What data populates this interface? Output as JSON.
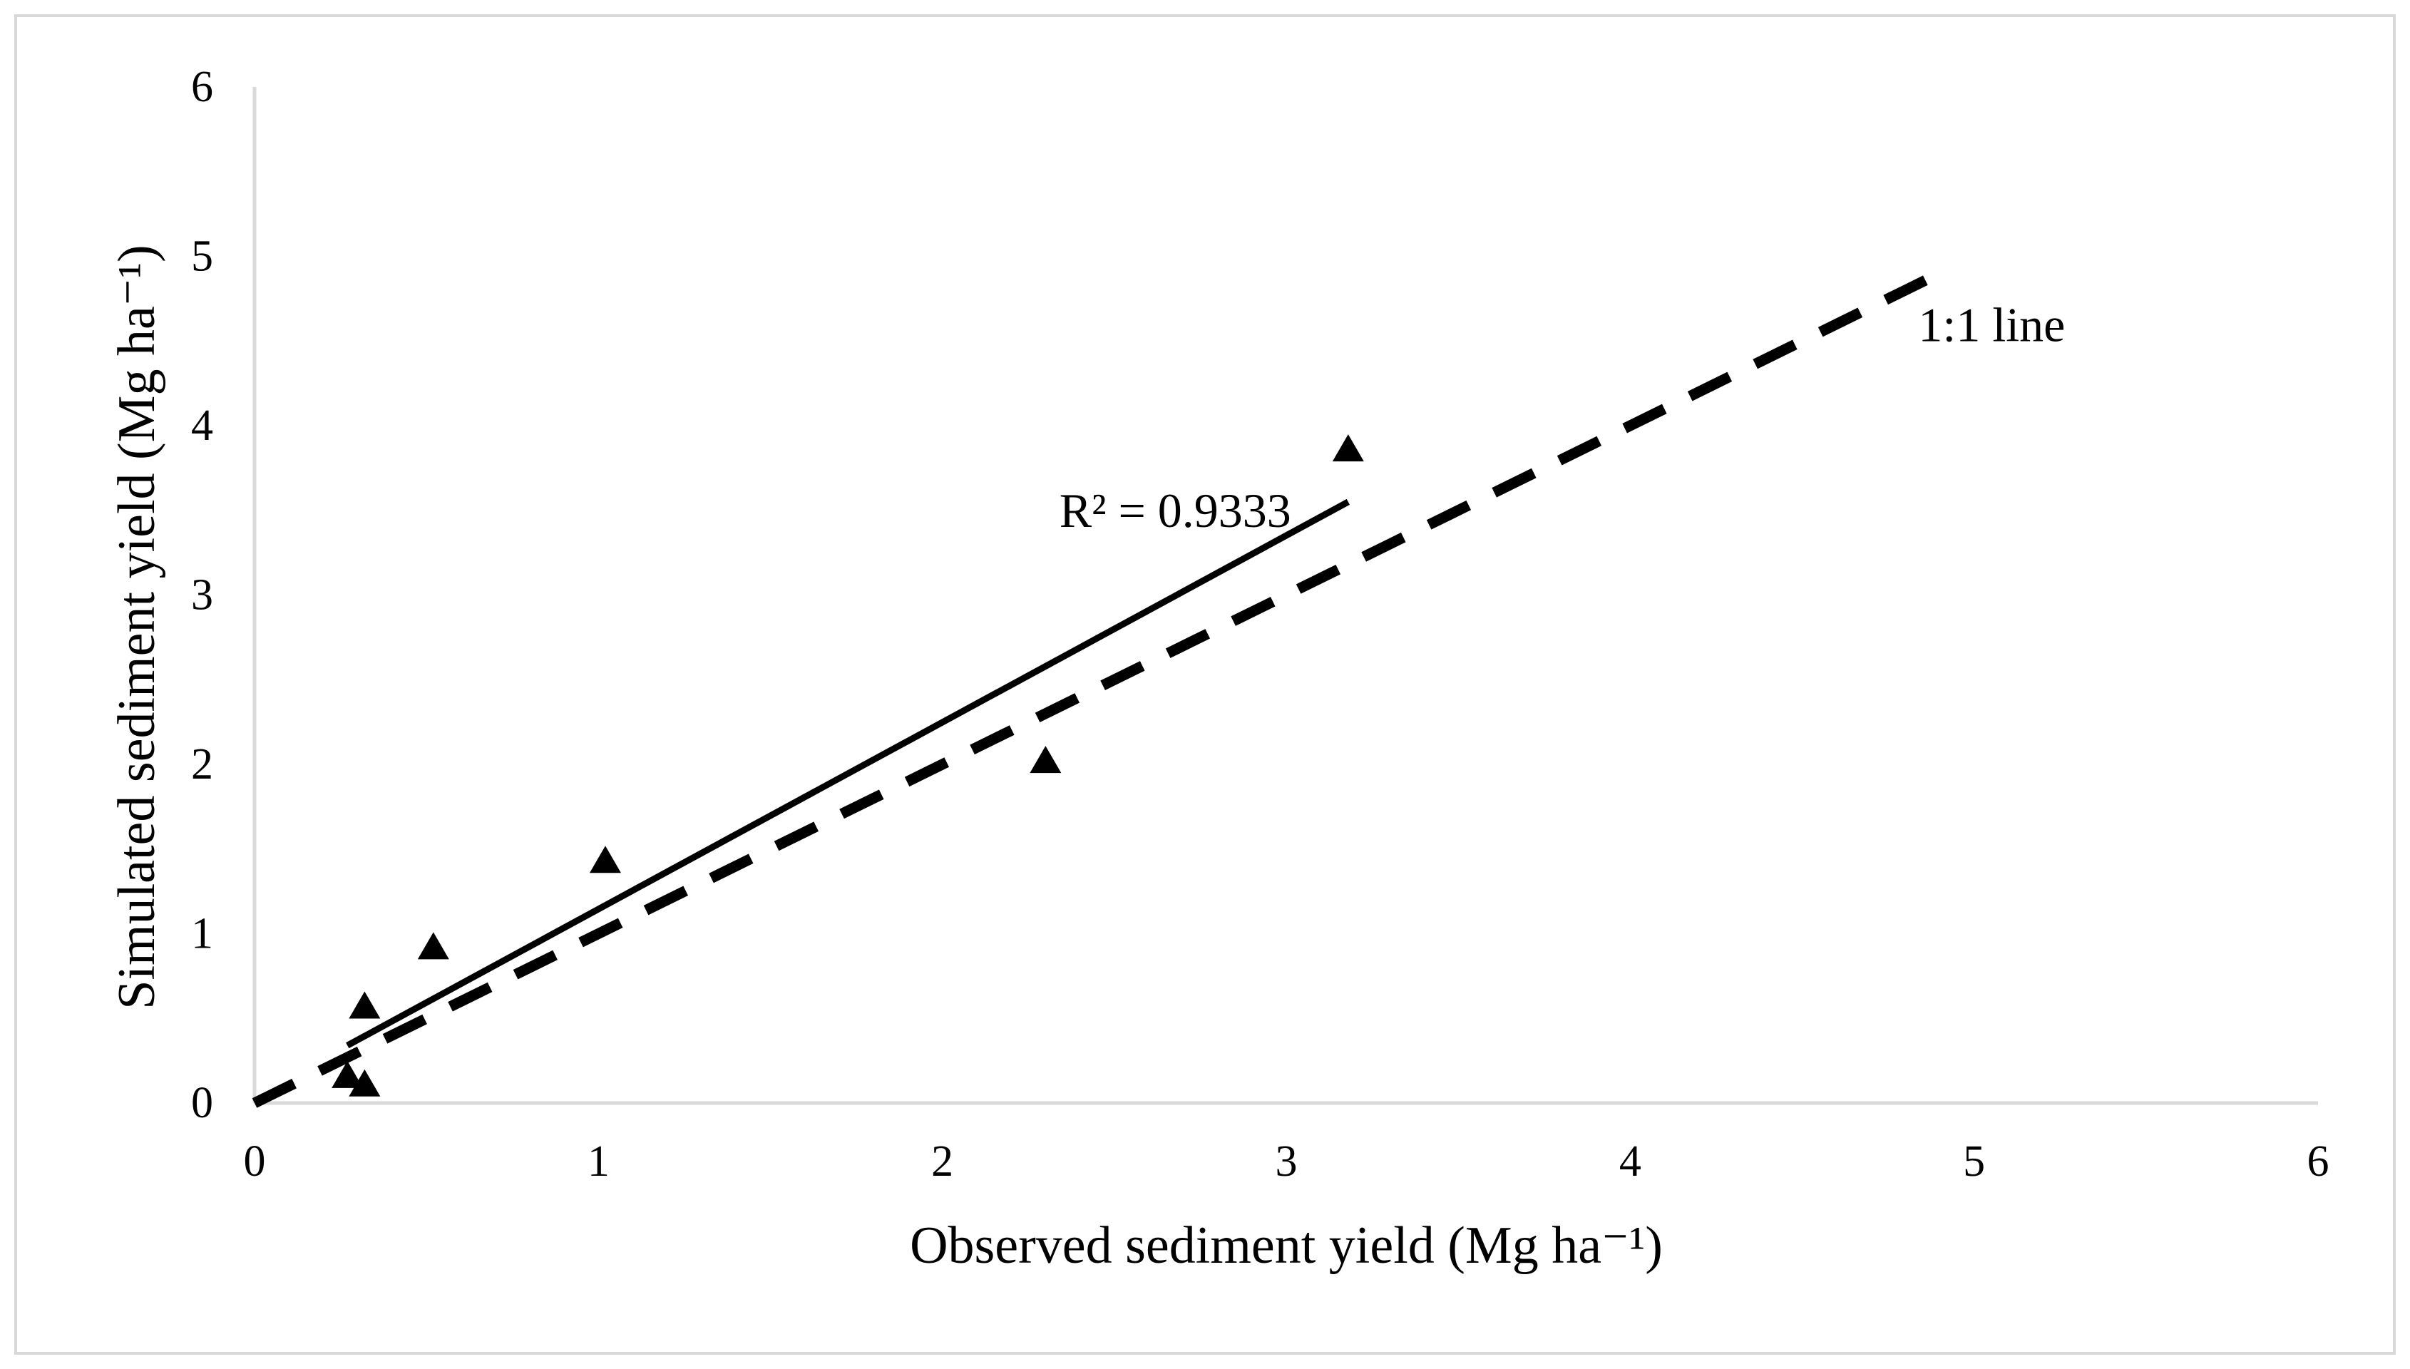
{
  "chart_data": {
    "type": "scatter",
    "title": "",
    "xlabel": "Observed sediment yield (Mg ha⁻¹)",
    "ylabel": "Simulated sediment yield (Mg ha⁻¹)",
    "xlim": [
      0,
      6
    ],
    "ylim": [
      0,
      6
    ],
    "x_ticks": [
      "0",
      "1",
      "2",
      "3",
      "4",
      "5",
      "6"
    ],
    "y_ticks": [
      "0",
      "1",
      "2",
      "3",
      "4",
      "5",
      "6"
    ],
    "grid": false,
    "legend": "none",
    "series": [
      {
        "marker": "triangle",
        "color": "#000000",
        "points": [
          {
            "x": 0.27,
            "y": 0.15
          },
          {
            "x": 0.32,
            "y": 0.1
          },
          {
            "x": 0.32,
            "y": 0.56
          },
          {
            "x": 0.52,
            "y": 0.91
          },
          {
            "x": 1.02,
            "y": 1.42
          },
          {
            "x": 2.3,
            "y": 2.01
          },
          {
            "x": 3.18,
            "y": 3.85
          }
        ]
      }
    ],
    "trendline": {
      "style": "solid",
      "color": "#000000",
      "from": {
        "x": 0.27,
        "y": 0.34
      },
      "to": {
        "x": 3.18,
        "y": 3.55
      },
      "label": "R² = 0.9333"
    },
    "reference_line": {
      "style": "dashed",
      "color": "#000000",
      "from": {
        "x": 0,
        "y": 0
      },
      "to": {
        "x": 4.9,
        "y": 4.9
      },
      "label": "1:1 line"
    },
    "axis_color": "#d9d9d9",
    "frame_color": "#d9d9d9"
  }
}
